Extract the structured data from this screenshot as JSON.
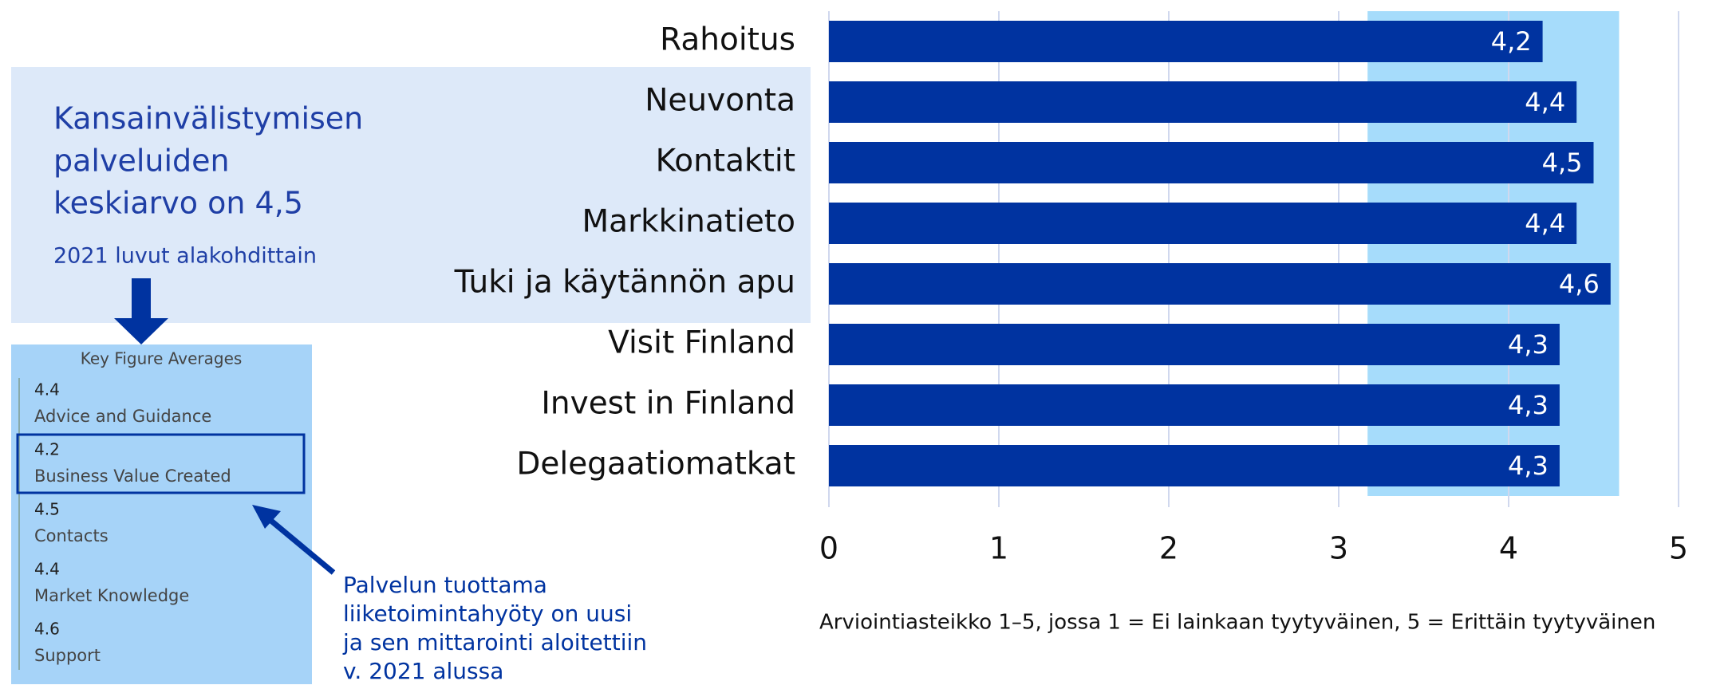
{
  "chart_data": {
    "type": "barh",
    "categories": [
      "Rahoitus",
      "Neuvonta",
      "Kontaktit",
      "Markkinatieto",
      "Tuki ja käytännön apu",
      "Visit Finland",
      "Invest in Finland",
      "Delegaatiomatkat"
    ],
    "values": [
      4.2,
      4.4,
      4.5,
      4.4,
      4.6,
      4.3,
      4.3,
      4.3
    ],
    "value_labels": [
      "4,2",
      "4,4",
      "4,5",
      "4,4",
      "4,6",
      "4,3",
      "4,3",
      "4,3"
    ],
    "color": "#0033a0",
    "highlight_range": [
      3.17,
      4.65
    ],
    "highlight_color": "#a6dcfb",
    "xlim": [
      0,
      5
    ],
    "xticks": [
      0,
      1,
      2,
      3,
      4,
      5
    ],
    "grid": true,
    "note": "Arviointiasteikko 1–5, jossa 1 = Ei lainkaan tyytyväinen, 5 = Erittäin tyytyväinen"
  },
  "panel": {
    "title": [
      "Kansainvälistymisen",
      "palveluiden",
      "keskiarvo on 4,5"
    ],
    "subtitle": "2021 luvut alakohdittain",
    "card": {
      "heading": "Key Figure Averages",
      "items": [
        {
          "value": "4.4",
          "label": "Advice and Guidance"
        },
        {
          "value": "4.2",
          "label": "Business Value Created"
        },
        {
          "value": "4.5",
          "label": "Contacts"
        },
        {
          "value": "4.4",
          "label": "Market Knowledge"
        },
        {
          "value": "4.6",
          "label": "Support"
        }
      ]
    },
    "callout": [
      "Palvelun tuottama",
      "liiketoimintahyöty on uusi",
      "ja sen mittarointi aloitettiin",
      "v. 2021 alussa"
    ]
  }
}
